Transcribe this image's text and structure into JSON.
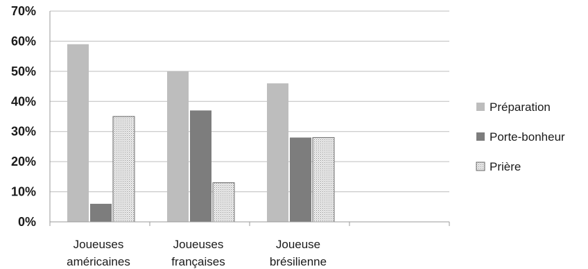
{
  "chart_data": {
    "type": "bar",
    "categories": [
      [
        "Joueuses",
        "américaines"
      ],
      [
        "Joueuses",
        "françaises"
      ],
      [
        "Joueuse",
        "brésilienne"
      ],
      [
        ""
      ]
    ],
    "series": [
      {
        "name": "Préparation",
        "color": "#bdbdbd",
        "pattern": "solid",
        "values": [
          59,
          50,
          46,
          null
        ]
      },
      {
        "name": "Porte-bonheur",
        "color": "#7d7d7d",
        "pattern": "solid",
        "values": [
          6,
          37,
          28,
          null
        ]
      },
      {
        "name": "Prière",
        "color": "#e6e6e6",
        "pattern": "dotted",
        "values": [
          35,
          13,
          28,
          null
        ]
      }
    ],
    "yticks": [
      "0%",
      "10%",
      "20%",
      "30%",
      "40%",
      "50%",
      "60%",
      "70%"
    ],
    "ylim": [
      0,
      70
    ],
    "grid": true,
    "legend": "right"
  }
}
